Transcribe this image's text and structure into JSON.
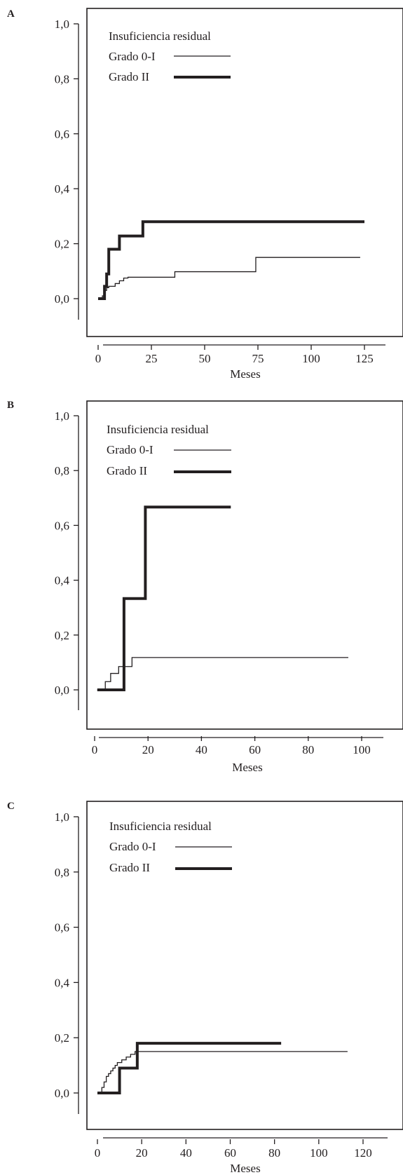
{
  "chart_data": [
    {
      "panel": "A",
      "type": "line",
      "step": true,
      "xlabel": "Meses",
      "ylabel": "",
      "xlim": [
        -8,
        135
      ],
      "ylim": [
        -0.06,
        1.06
      ],
      "xticks": [
        0,
        25,
        50,
        75,
        100,
        125
      ],
      "xtick_labels": [
        "0",
        "25",
        "50",
        "75",
        "100",
        "125"
      ],
      "yticks": [
        0,
        0.2,
        0.4,
        0.6,
        0.8,
        1.0
      ],
      "ytick_labels": [
        "0,0",
        "0,2",
        "0,4",
        "0,6",
        "0,8",
        "1,0"
      ],
      "legend": {
        "title": "Insuficiencia residual",
        "placement": "top-left",
        "entries": [
          "Grado 0-I",
          "Grado II"
        ]
      },
      "series": [
        {
          "name": "Grado 0-I",
          "style": "thin",
          "points": [
            [
              0,
              0
            ],
            [
              2,
              0.01
            ],
            [
              3,
              0.03
            ],
            [
              4,
              0.04
            ],
            [
              5,
              0.045
            ],
            [
              8,
              0.055
            ],
            [
              10,
              0.065
            ],
            [
              12,
              0.075
            ],
            [
              14,
              0.078
            ],
            [
              36,
              0.098
            ],
            [
              74,
              0.15
            ],
            [
              123,
              0.15
            ]
          ]
        },
        {
          "name": "Grado II",
          "style": "thick",
          "points": [
            [
              0,
              0
            ],
            [
              3,
              0.045
            ],
            [
              4,
              0.09
            ],
            [
              5,
              0.18
            ],
            [
              10,
              0.228
            ],
            [
              21,
              0.28
            ],
            [
              125,
              0.28
            ]
          ]
        }
      ]
    },
    {
      "panel": "B",
      "type": "line",
      "step": true,
      "xlabel": "Meses",
      "ylabel": "",
      "xlim": [
        -5,
        105
      ],
      "ylim": [
        -0.06,
        1.06
      ],
      "xticks": [
        0,
        20,
        40,
        60,
        80,
        100
      ],
      "xtick_labels": [
        "0",
        "20",
        "40",
        "60",
        "80",
        "100"
      ],
      "yticks": [
        0,
        0.2,
        0.4,
        0.6,
        0.8,
        1.0
      ],
      "ytick_labels": [
        "0,0",
        "0,2",
        "0,4",
        "0,6",
        "0,8",
        "1,0"
      ],
      "legend": {
        "title": "Insuficiencia residual",
        "placement": "top-left",
        "entries": [
          "Grado 0-I",
          "Grado II"
        ]
      },
      "series": [
        {
          "name": "Grado 0-I",
          "style": "thin",
          "points": [
            [
              1,
              0
            ],
            [
              4,
              0.03
            ],
            [
              6,
              0.06
            ],
            [
              9,
              0.085
            ],
            [
              14,
              0.118
            ],
            [
              95,
              0.118
            ]
          ]
        },
        {
          "name": "Grado II",
          "style": "thick",
          "points": [
            [
              1,
              0
            ],
            [
              11,
              0.333
            ],
            [
              19,
              0.667
            ],
            [
              51,
              0.667
            ]
          ]
        }
      ]
    },
    {
      "panel": "C",
      "type": "line",
      "step": true,
      "xlabel": "Meses",
      "ylabel": "",
      "xlim": [
        -7,
        127
      ],
      "ylim": [
        -0.06,
        1.06
      ],
      "xticks": [
        0,
        20,
        40,
        60,
        80,
        100,
        120
      ],
      "xtick_labels": [
        "0",
        "20",
        "40",
        "60",
        "80",
        "100",
        "120"
      ],
      "yticks": [
        0,
        0.2,
        0.4,
        0.6,
        0.8,
        1.0
      ],
      "ytick_labels": [
        "0,0",
        "0,2",
        "0,4",
        "0,6",
        "0,8",
        "1,0"
      ],
      "legend": {
        "title": "Insuficiencia residual",
        "placement": "top-left",
        "entries": [
          "Grado 0-I",
          "Grado II"
        ]
      },
      "series": [
        {
          "name": "Grado 0-I",
          "style": "thin",
          "points": [
            [
              0,
              0
            ],
            [
              2,
              0.02
            ],
            [
              3,
              0.04
            ],
            [
              4,
              0.06
            ],
            [
              5,
              0.07
            ],
            [
              6,
              0.08
            ],
            [
              7,
              0.09
            ],
            [
              8,
              0.1
            ],
            [
              9,
              0.11
            ],
            [
              11,
              0.12
            ],
            [
              13,
              0.13
            ],
            [
              15,
              0.14
            ],
            [
              17,
              0.15
            ],
            [
              113,
              0.15
            ]
          ]
        },
        {
          "name": "Grado II",
          "style": "thick",
          "points": [
            [
              0,
              0
            ],
            [
              10,
              0.09
            ],
            [
              18,
              0.18
            ],
            [
              83,
              0.18
            ]
          ]
        }
      ]
    }
  ]
}
